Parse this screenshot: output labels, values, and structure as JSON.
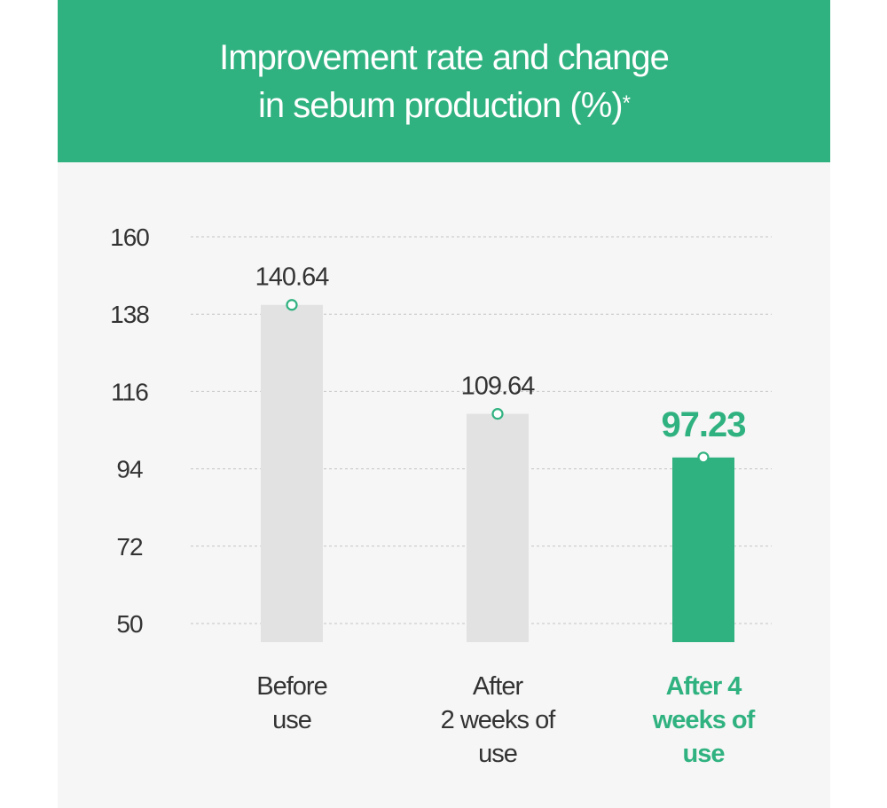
{
  "header": {
    "title_line1": "Improvement rate and change",
    "title_line2": "in sebum production (%)",
    "title_mark": "*"
  },
  "colors": {
    "accent": "#30b280",
    "header_bg": "#30b280",
    "panel_bg": "#f6f6f6",
    "bar_grey": "#e2e2e2",
    "text_dark": "#333333"
  },
  "chart_data": {
    "type": "bar",
    "title": "Improvement rate and change in sebum production (%)*",
    "xlabel": "",
    "ylabel": "",
    "categories": [
      [
        "Before",
        "use"
      ],
      [
        "After",
        "2 weeks of",
        "use"
      ],
      [
        "After 4",
        "weeks of",
        "use"
      ]
    ],
    "values": [
      140.64,
      109.64,
      97.23
    ],
    "value_labels": [
      "140.64",
      "109.64",
      "97.23"
    ],
    "highlight_index": 2,
    "yticks": [
      "160",
      "138",
      "116",
      "94",
      "72",
      "50"
    ],
    "ylim": [
      50,
      160
    ],
    "grid": true,
    "gridline_style": "dashed"
  }
}
